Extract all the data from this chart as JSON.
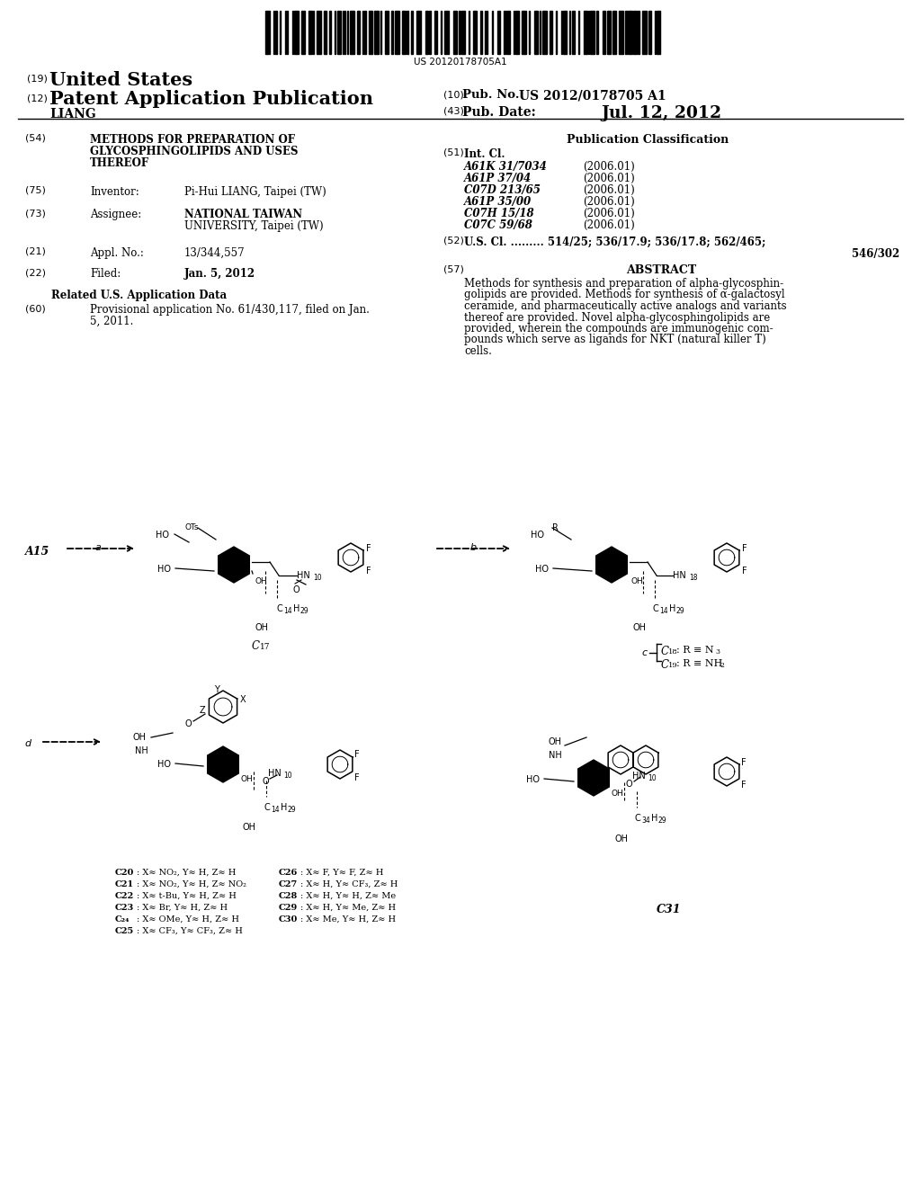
{
  "bg": "#ffffff",
  "barcode_text": "US 20120178705A1",
  "h_country_label": "(19)",
  "h_country": "United States",
  "h_pubtype_label": "(12)",
  "h_pubtype": "Patent Application Publication",
  "h_surname": "LIANG",
  "h_pubno_label": "(10)",
  "h_pubno_key": "Pub. No.:",
  "h_pubno_val": "US 2012/0178705 A1",
  "h_pubdate_label": "(43)",
  "h_pubdate_key": "Pub. Date:",
  "h_pubdate_val": "Jul. 12, 2012",
  "lc_title_label": "(54)",
  "lc_title_lines": [
    "METHODS FOR PREPARATION OF",
    "GLYCOSPHINGOLIPIDS AND USES",
    "THEREOF"
  ],
  "lc_inv_label": "(75)",
  "lc_inv_key": "Inventor:",
  "lc_inv_val": "Pi-Hui LIANG, Taipei (TW)",
  "lc_asgn_label": "(73)",
  "lc_asgn_key": "Assignee:",
  "lc_asgn_val1": "NATIONAL TAIWAN",
  "lc_asgn_val2": "UNIVERSITY, Taipei (TW)",
  "lc_appl_label": "(21)",
  "lc_appl_key": "Appl. No.:",
  "lc_appl_val": "13/344,557",
  "lc_filed_label": "(22)",
  "lc_filed_key": "Filed:",
  "lc_filed_val": "Jan. 5, 2012",
  "lc_related_hdr": "Related U.S. Application Data",
  "lc_prov_label": "(60)",
  "lc_prov_lines": [
    "Provisional application No. 61/430,117, filed on Jan.",
    "5, 2011."
  ],
  "rc_pubclass_hdr": "Publication Classification",
  "rc_intl_label": "(51)",
  "rc_intl_key": "Int. Cl.",
  "rc_classes": [
    [
      "A61K 31/7034",
      "(2006.01)"
    ],
    [
      "A61P 37/04",
      "(2006.01)"
    ],
    [
      "C07D 213/65",
      "(2006.01)"
    ],
    [
      "A61P 35/00",
      "(2006.01)"
    ],
    [
      "C07H 15/18",
      "(2006.01)"
    ],
    [
      "C07C 59/68",
      "(2006.01)"
    ]
  ],
  "rc_uscl_label": "(52)",
  "rc_uscl_line1": "U.S. Cl. ......... 514/25; 536/17.9; 536/17.8; 562/465;",
  "rc_uscl_line2": "546/302",
  "rc_abs_label": "(57)",
  "rc_abs_hdr": "ABSTRACT",
  "rc_abs_lines": [
    "Methods for synthesis and preparation of alpha-glycosphin-",
    "golipids are provided. Methods for synthesis of α-galactosyl",
    "ceramide, and pharmaceutically active analogs and variants",
    "thereof are provided. Novel alpha-glycosphingolipids are",
    "provided, wherein the compounds are immunogenic com-",
    "pounds which serve as ligands for NKT (natural killer T)",
    "cells."
  ],
  "diag_a15": "A15",
  "diag_label_a": "a",
  "diag_label_b": "b",
  "diag_label_c": "c",
  "diag_label_d": "d",
  "diag_c17": "C",
  "diag_c17_sub": "17",
  "diag_c18": "C",
  "diag_c18_sub": "18",
  "diag_c18_r": ": R ≡ N",
  "diag_c18_r_sub": "3",
  "diag_c19": "C",
  "diag_c19_sub": "19",
  "diag_c19_r": ": R ≡ NH",
  "diag_c19_r_sub": "2",
  "diag_c31": "C31",
  "cmpd_col1": [
    [
      "C20",
      ": X≈ NO₂, Y≈ H, Z≈ H"
    ],
    [
      "C21",
      ": X≈ NO₂, Y≈ H, Z≈ NO₂"
    ],
    [
      "C22",
      ": X≈ t-Bu, Y≈ H, Z≈ H"
    ],
    [
      "C23",
      ": X≈ Br, Y≈ H, Z≈ H"
    ],
    [
      "C₂₄",
      ": X≈ OMe, Y≈ H, Z≈ H"
    ],
    [
      "C25",
      ": X≈ CF₃, Y≈ CF₃, Z≈ H"
    ]
  ],
  "cmpd_col2": [
    [
      "C26",
      ": X≈ F, Y≈ F, Z≈ H"
    ],
    [
      "C27",
      ": X≈ H, Y≈ CF₃, Z≈ H"
    ],
    [
      "C28",
      ": X≈ H, Y≈ H, Z≈ Me"
    ],
    [
      "C29",
      ": X≈ H, Y≈ Me, Z≈ H"
    ],
    [
      "C30",
      ": X≈ Me, Y≈ H, Z≈ H"
    ]
  ]
}
